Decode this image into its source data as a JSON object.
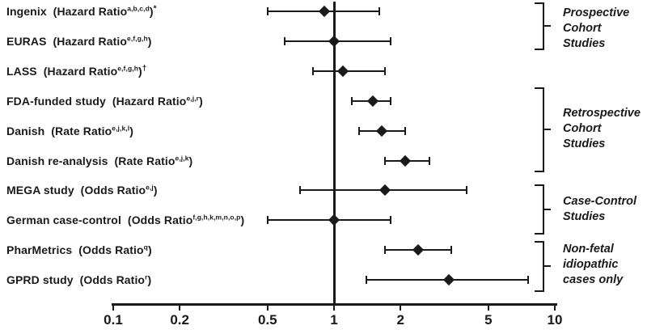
{
  "chart_data": {
    "type": "forest",
    "x_axis": {
      "scale": "log10",
      "range": [
        0.1,
        10
      ],
      "ticks": [
        0.1,
        0.2,
        0.5,
        1,
        2,
        5,
        10
      ],
      "tick_labels": [
        "0.1",
        "0.2",
        "0.5",
        "1",
        "2",
        "5",
        "10"
      ],
      "reference_line": 1
    },
    "studies": [
      {
        "name": "Ingenix",
        "measure": "Hazard Ratio",
        "superscript": "a,b,c,d",
        "suffix": "*",
        "estimate": 0.9,
        "ci_low": 0.5,
        "ci_high": 1.6
      },
      {
        "name": "EURAS",
        "measure": "Hazard Ratio",
        "superscript": "e,f,g,h",
        "suffix": "",
        "estimate": 1.0,
        "ci_low": 0.6,
        "ci_high": 1.8
      },
      {
        "name": "LASS",
        "measure": "Hazard Ratio",
        "superscript": "e,f,g,h",
        "suffix": "†",
        "estimate": 1.1,
        "ci_low": 0.8,
        "ci_high": 1.7
      },
      {
        "name": "FDA-funded study",
        "measure": "Hazard Ratio",
        "superscript": "e,j,r",
        "suffix": "",
        "estimate": 1.5,
        "ci_low": 1.2,
        "ci_high": 1.8
      },
      {
        "name": "Danish",
        "measure": "Rate Ratio",
        "superscript": "e,j,k,l",
        "suffix": "",
        "estimate": 1.65,
        "ci_low": 1.3,
        "ci_high": 2.1
      },
      {
        "name": "Danish re-analysis",
        "measure": "Rate Ratio",
        "superscript": "e,j,k",
        "suffix": "",
        "estimate": 2.1,
        "ci_low": 1.7,
        "ci_high": 2.7
      },
      {
        "name": "MEGA study",
        "measure": "Odds Ratio",
        "superscript": "e,j",
        "suffix": "",
        "estimate": 1.7,
        "ci_low": 0.7,
        "ci_high": 4.0
      },
      {
        "name": "German case-control",
        "measure": "Odds Ratio",
        "superscript": "f,g,h,k,m,n,o,p",
        "suffix": "",
        "estimate": 1.0,
        "ci_low": 0.5,
        "ci_high": 1.8
      },
      {
        "name": "PharMetrics",
        "measure": "Odds Ratio",
        "superscript": "q",
        "suffix": "",
        "estimate": 2.4,
        "ci_low": 1.7,
        "ci_high": 3.4
      },
      {
        "name": "GPRD study",
        "measure": "Odds Ratio",
        "superscript": "r",
        "suffix": "",
        "estimate": 3.3,
        "ci_low": 1.4,
        "ci_high": 7.6
      }
    ],
    "groups": [
      {
        "label_lines": [
          "Prospective",
          "Cohort",
          "Studies"
        ]
      },
      {
        "label_lines": [
          "Retrospective",
          "Cohort",
          "Studies"
        ]
      },
      {
        "label_lines": [
          "Case-Control",
          "Studies"
        ]
      },
      {
        "label_lines": [
          "Non-fetal",
          "idiopathic",
          "cases only"
        ]
      }
    ]
  },
  "colors": {
    "ink": "#1a1a1a",
    "background": "#ffffff"
  }
}
